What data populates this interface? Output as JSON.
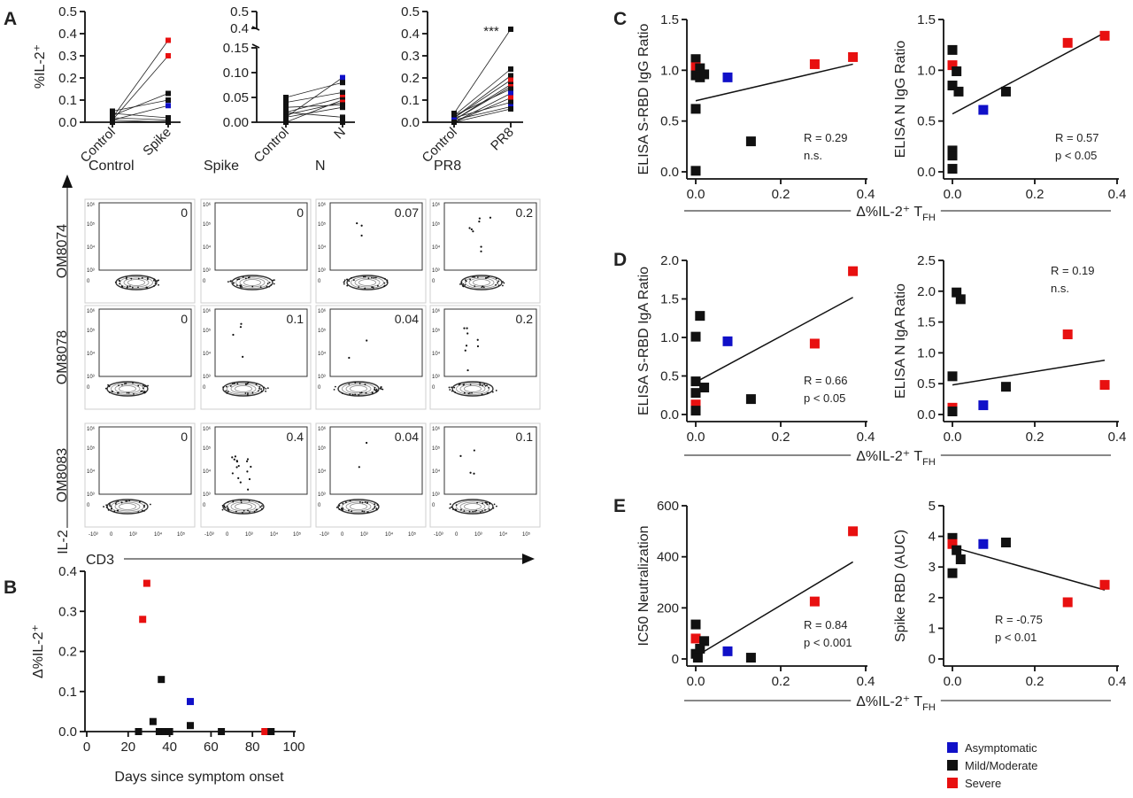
{
  "colors": {
    "asymptomatic": "#1010c8",
    "mild_moderate": "#111111",
    "severe": "#e81010"
  },
  "legend": {
    "items": [
      {
        "key": "asymptomatic",
        "label": "Asymptomatic"
      },
      {
        "key": "mild_moderate",
        "label": "Mild/Moderate"
      },
      {
        "key": "severe",
        "label": "Severe"
      }
    ]
  },
  "panel_a": {
    "letter": "A",
    "ylabel": "%IL-2⁺",
    "pairs": [
      {
        "id": "spike",
        "categories": [
          "Control",
          "Spike"
        ],
        "ylim": [
          0,
          0.5
        ],
        "yticks": [
          0,
          0.1,
          0.2,
          0.3,
          0.4,
          0.5
        ],
        "ytick_labels": [
          "0.0",
          "0.1",
          "0.2",
          "0.3",
          "0.4",
          "0.5"
        ],
        "significance": "",
        "lines": [
          {
            "c": "severe",
            "y": [
              0.02,
              0.37
            ]
          },
          {
            "c": "severe",
            "y": [
              0.01,
              0.3
            ]
          },
          {
            "c": "mild_moderate",
            "y": [
              0.03,
              0.13
            ]
          },
          {
            "c": "mild_moderate",
            "y": [
              0.05,
              0.1
            ]
          },
          {
            "c": "asymptomatic",
            "y": [
              0.01,
              0.075
            ]
          },
          {
            "c": "mild_moderate",
            "y": [
              0.04,
              0.02
            ]
          },
          {
            "c": "mild_moderate",
            "y": [
              0.02,
              0.01
            ]
          },
          {
            "c": "mild_moderate",
            "y": [
              0.0,
              0.005
            ]
          },
          {
            "c": "mild_moderate",
            "y": [
              0.01,
              0.0
            ]
          }
        ]
      },
      {
        "id": "n",
        "categories": [
          "Control",
          "N"
        ],
        "ylim": [
          0,
          0.15
        ],
        "yticks": [
          0,
          0.05,
          0.1,
          0.15
        ],
        "ytick_labels": [
          "0.00",
          "0.05",
          "0.10",
          "0.15"
        ],
        "break_ticks": [
          "0.4",
          "0.5"
        ],
        "significance": "",
        "lines": [
          {
            "c": "asymptomatic",
            "y": [
              0.01,
              0.09
            ]
          },
          {
            "c": "mild_moderate",
            "y": [
              0.05,
              0.08
            ]
          },
          {
            "c": "mild_moderate",
            "y": [
              0.04,
              0.06
            ]
          },
          {
            "c": "severe",
            "y": [
              0.02,
              0.05
            ]
          },
          {
            "c": "mild_moderate",
            "y": [
              0.0,
              0.045
            ]
          },
          {
            "c": "severe",
            "y": [
              0.015,
              0.04
            ]
          },
          {
            "c": "mild_moderate",
            "y": [
              0.03,
              0.035
            ]
          },
          {
            "c": "mild_moderate",
            "y": [
              0.01,
              0.03
            ]
          },
          {
            "c": "mild_moderate",
            "y": [
              0.02,
              0.01
            ]
          },
          {
            "c": "mild_moderate",
            "y": [
              0.0,
              0.0
            ]
          }
        ]
      },
      {
        "id": "pr8",
        "categories": [
          "Control",
          "PR8"
        ],
        "ylim": [
          0,
          0.5
        ],
        "yticks": [
          0,
          0.1,
          0.2,
          0.3,
          0.4,
          0.5
        ],
        "ytick_labels": [
          "0.0",
          "0.1",
          "0.2",
          "0.3",
          "0.4",
          "0.5"
        ],
        "significance": "***",
        "lines": [
          {
            "c": "mild_moderate",
            "y": [
              0.04,
              0.42
            ]
          },
          {
            "c": "mild_moderate",
            "y": [
              0.03,
              0.24
            ]
          },
          {
            "c": "mild_moderate",
            "y": [
              0.02,
              0.21
            ]
          },
          {
            "c": "severe",
            "y": [
              0.02,
              0.19
            ]
          },
          {
            "c": "mild_moderate",
            "y": [
              0.01,
              0.17
            ]
          },
          {
            "c": "severe",
            "y": [
              0.01,
              0.16
            ]
          },
          {
            "c": "mild_moderate",
            "y": [
              0.03,
              0.15
            ]
          },
          {
            "c": "asymptomatic",
            "y": [
              0.0,
              0.13
            ]
          },
          {
            "c": "severe",
            "y": [
              0.0,
              0.11
            ]
          },
          {
            "c": "mild_moderate",
            "y": [
              0.02,
              0.09
            ]
          },
          {
            "c": "asymptomatic",
            "y": [
              0.01,
              0.07
            ]
          },
          {
            "c": "mild_moderate",
            "y": [
              0.0,
              0.06
            ]
          }
        ]
      }
    ]
  },
  "facs": {
    "columns": [
      "Control",
      "Spike",
      "N",
      "PR8"
    ],
    "rows": [
      "OM8074",
      "OM8078",
      "OM8083"
    ],
    "values": [
      [
        "0",
        "0",
        "0.07",
        "0.2"
      ],
      [
        "0",
        "0.1",
        "0.04",
        "0.2"
      ],
      [
        "0",
        "0.4",
        "0.04",
        "0.1"
      ]
    ],
    "y_axis_label": "IL-2",
    "x_axis_label": "CD3",
    "y_tick_labels": [
      "10⁶",
      "10⁵",
      "10⁴",
      "10³",
      "0"
    ],
    "x_tick_labels": [
      "-10³",
      "0",
      "10³",
      "10⁴",
      "10⁵"
    ]
  },
  "chart_data": [
    {
      "panel": "B",
      "type": "scatter",
      "xlabel": "Days since symptom onset",
      "ylabel": "Δ%IL-2⁺",
      "xlim": [
        0,
        100
      ],
      "ylim": [
        0,
        0.4
      ],
      "xticks": [
        0,
        20,
        40,
        60,
        80,
        100
      ],
      "yticks": [
        0,
        0.1,
        0.2,
        0.3,
        0.4
      ],
      "points": [
        {
          "x": 27,
          "y": 0.28,
          "c": "severe"
        },
        {
          "x": 29,
          "y": 0.37,
          "c": "severe"
        },
        {
          "x": 36,
          "y": 0.13,
          "c": "mild_moderate"
        },
        {
          "x": 50,
          "y": 0.075,
          "c": "asymptomatic"
        },
        {
          "x": 32,
          "y": 0.025,
          "c": "mild_moderate"
        },
        {
          "x": 50,
          "y": 0.015,
          "c": "mild_moderate"
        },
        {
          "x": 25,
          "y": 0.0,
          "c": "mild_moderate"
        },
        {
          "x": 35,
          "y": 0.0,
          "c": "mild_moderate"
        },
        {
          "x": 38,
          "y": 0.0,
          "c": "mild_moderate"
        },
        {
          "x": 40,
          "y": 0.0,
          "c": "mild_moderate"
        },
        {
          "x": 65,
          "y": 0.0,
          "c": "mild_moderate"
        },
        {
          "x": 86,
          "y": 0.0,
          "c": "severe"
        },
        {
          "x": 89,
          "y": 0.0,
          "c": "mild_moderate"
        }
      ]
    },
    {
      "panel": "C",
      "type": "scatter",
      "ylabel": "ELISA S-RBD IgG Ratio",
      "xlim": [
        0,
        0.4
      ],
      "ylim": [
        0,
        1.5
      ],
      "xticks": [
        0,
        0.2,
        0.4
      ],
      "yticks": [
        0,
        0.5,
        1.0,
        1.5
      ],
      "stat_r": "R = 0.29",
      "stat_p": "n.s.",
      "fit": [
        [
          0.0,
          0.7
        ],
        [
          0.37,
          1.06
        ]
      ],
      "points": [
        {
          "x": 0.0,
          "y": 1.11,
          "c": "mild_moderate"
        },
        {
          "x": 0.0,
          "y": 1.03,
          "c": "severe"
        },
        {
          "x": 0.01,
          "y": 1.02,
          "c": "mild_moderate"
        },
        {
          "x": 0.0,
          "y": 0.95,
          "c": "mild_moderate"
        },
        {
          "x": 0.01,
          "y": 0.93,
          "c": "mild_moderate"
        },
        {
          "x": 0.02,
          "y": 0.96,
          "c": "mild_moderate"
        },
        {
          "x": 0.0,
          "y": 0.62,
          "c": "mild_moderate"
        },
        {
          "x": 0.0,
          "y": 0.01,
          "c": "mild_moderate"
        },
        {
          "x": 0.075,
          "y": 0.93,
          "c": "asymptomatic"
        },
        {
          "x": 0.13,
          "y": 0.3,
          "c": "mild_moderate"
        },
        {
          "x": 0.28,
          "y": 1.06,
          "c": "severe"
        },
        {
          "x": 0.37,
          "y": 1.13,
          "c": "severe"
        }
      ]
    },
    {
      "panel": "C2",
      "type": "scatter",
      "ylabel": "ELISA N IgG Ratio",
      "xlim": [
        0,
        0.4
      ],
      "ylim": [
        0,
        1.5
      ],
      "xticks": [
        0,
        0.2,
        0.4
      ],
      "yticks": [
        0,
        0.5,
        1.0,
        1.5
      ],
      "stat_r": "R = 0.57",
      "stat_p": "p < 0.05",
      "fit": [
        [
          0.0,
          0.57
        ],
        [
          0.37,
          1.37
        ]
      ],
      "points": [
        {
          "x": 0.0,
          "y": 1.2,
          "c": "mild_moderate"
        },
        {
          "x": 0.0,
          "y": 1.05,
          "c": "severe"
        },
        {
          "x": 0.01,
          "y": 0.99,
          "c": "mild_moderate"
        },
        {
          "x": 0.0,
          "y": 0.85,
          "c": "mild_moderate"
        },
        {
          "x": 0.015,
          "y": 0.79,
          "c": "mild_moderate"
        },
        {
          "x": 0.0,
          "y": 0.21,
          "c": "mild_moderate"
        },
        {
          "x": 0.0,
          "y": 0.16,
          "c": "mild_moderate"
        },
        {
          "x": 0.0,
          "y": 0.03,
          "c": "mild_moderate"
        },
        {
          "x": 0.075,
          "y": 0.61,
          "c": "asymptomatic"
        },
        {
          "x": 0.13,
          "y": 0.79,
          "c": "mild_moderate"
        },
        {
          "x": 0.28,
          "y": 1.27,
          "c": "severe"
        },
        {
          "x": 0.37,
          "y": 1.34,
          "c": "severe"
        }
      ]
    },
    {
      "panel": "D",
      "type": "scatter",
      "ylabel": "ELISA S-RBD IgA Ratio",
      "xlim": [
        0,
        0.4
      ],
      "ylim": [
        0,
        2.0
      ],
      "xticks": [
        0,
        0.2,
        0.4
      ],
      "yticks": [
        0,
        0.5,
        1.0,
        1.5,
        2.0
      ],
      "stat_r": "R = 0.66",
      "stat_p": "p < 0.05",
      "fit": [
        [
          0.0,
          0.42
        ],
        [
          0.37,
          1.52
        ]
      ],
      "points": [
        {
          "x": 0.01,
          "y": 1.28,
          "c": "mild_moderate"
        },
        {
          "x": 0.0,
          "y": 1.01,
          "c": "mild_moderate"
        },
        {
          "x": 0.0,
          "y": 0.43,
          "c": "mild_moderate"
        },
        {
          "x": 0.02,
          "y": 0.35,
          "c": "mild_moderate"
        },
        {
          "x": 0.0,
          "y": 0.28,
          "c": "mild_moderate"
        },
        {
          "x": 0.0,
          "y": 0.13,
          "c": "severe"
        },
        {
          "x": 0.0,
          "y": 0.05,
          "c": "mild_moderate"
        },
        {
          "x": 0.075,
          "y": 0.95,
          "c": "asymptomatic"
        },
        {
          "x": 0.13,
          "y": 0.2,
          "c": "mild_moderate"
        },
        {
          "x": 0.28,
          "y": 0.92,
          "c": "severe"
        },
        {
          "x": 0.37,
          "y": 1.86,
          "c": "severe"
        }
      ]
    },
    {
      "panel": "D2",
      "type": "scatter",
      "ylabel": "ELISA N IgA Ratio",
      "xlim": [
        0,
        0.4
      ],
      "ylim": [
        0,
        2.5
      ],
      "xticks": [
        0,
        0.2,
        0.4
      ],
      "yticks": [
        0,
        0.5,
        1.0,
        1.5,
        2.0,
        2.5
      ],
      "stat_r": "R = 0.19",
      "stat_p": "n.s.",
      "fit": [
        [
          0.0,
          0.48
        ],
        [
          0.37,
          0.88
        ]
      ],
      "points": [
        {
          "x": 0.01,
          "y": 1.98,
          "c": "mild_moderate"
        },
        {
          "x": 0.02,
          "y": 1.87,
          "c": "mild_moderate"
        },
        {
          "x": 0.0,
          "y": 0.62,
          "c": "mild_moderate"
        },
        {
          "x": 0.0,
          "y": 0.11,
          "c": "severe"
        },
        {
          "x": 0.0,
          "y": 0.05,
          "c": "mild_moderate"
        },
        {
          "x": 0.075,
          "y": 0.15,
          "c": "asymptomatic"
        },
        {
          "x": 0.13,
          "y": 0.45,
          "c": "mild_moderate"
        },
        {
          "x": 0.28,
          "y": 1.3,
          "c": "severe"
        },
        {
          "x": 0.37,
          "y": 0.48,
          "c": "severe"
        }
      ]
    },
    {
      "panel": "E",
      "type": "scatter",
      "ylabel": "IC50 Neutralization",
      "xlim": [
        0,
        0.4
      ],
      "ylim": [
        0,
        600
      ],
      "xticks": [
        0,
        0.2,
        0.4
      ],
      "yticks": [
        0,
        200,
        400,
        600
      ],
      "stat_r": "R = 0.84",
      "stat_p": "p < 0.001",
      "fit": [
        [
          0.0,
          10
        ],
        [
          0.37,
          380
        ]
      ],
      "points": [
        {
          "x": 0.0,
          "y": 135,
          "c": "mild_moderate"
        },
        {
          "x": 0.0,
          "y": 80,
          "c": "severe"
        },
        {
          "x": 0.02,
          "y": 70,
          "c": "mild_moderate"
        },
        {
          "x": 0.01,
          "y": 40,
          "c": "mild_moderate"
        },
        {
          "x": 0.0,
          "y": 20,
          "c": "mild_moderate"
        },
        {
          "x": 0.005,
          "y": 5,
          "c": "mild_moderate"
        },
        {
          "x": 0.075,
          "y": 30,
          "c": "asymptomatic"
        },
        {
          "x": 0.13,
          "y": 5,
          "c": "mild_moderate"
        },
        {
          "x": 0.28,
          "y": 225,
          "c": "severe"
        },
        {
          "x": 0.37,
          "y": 500,
          "c": "severe"
        }
      ]
    },
    {
      "panel": "E2",
      "type": "scatter",
      "ylabel": "Spike RBD (AUC)",
      "xlim": [
        0,
        0.4
      ],
      "ylim": [
        0,
        5
      ],
      "xticks": [
        0,
        0.2,
        0.4
      ],
      "yticks": [
        0,
        1,
        2,
        3,
        4,
        5
      ],
      "stat_r": "R = -0.75",
      "stat_p": "p < 0.01",
      "fit": [
        [
          0.0,
          3.65
        ],
        [
          0.37,
          2.25
        ]
      ],
      "points": [
        {
          "x": 0.0,
          "y": 3.95,
          "c": "mild_moderate"
        },
        {
          "x": 0.0,
          "y": 3.75,
          "c": "severe"
        },
        {
          "x": 0.01,
          "y": 3.55,
          "c": "mild_moderate"
        },
        {
          "x": 0.02,
          "y": 3.25,
          "c": "mild_moderate"
        },
        {
          "x": 0.0,
          "y": 2.8,
          "c": "mild_moderate"
        },
        {
          "x": 0.075,
          "y": 3.75,
          "c": "asymptomatic"
        },
        {
          "x": 0.13,
          "y": 3.8,
          "c": "mild_moderate"
        },
        {
          "x": 0.28,
          "y": 1.85,
          "c": "severe"
        },
        {
          "x": 0.37,
          "y": 2.42,
          "c": "severe"
        }
      ]
    }
  ],
  "shared_x_label": {
    "delta": "Δ%IL-2⁺ T",
    "sub": "FH"
  },
  "panel_letters": {
    "B": "B",
    "C": "C",
    "D": "D",
    "E": "E"
  }
}
